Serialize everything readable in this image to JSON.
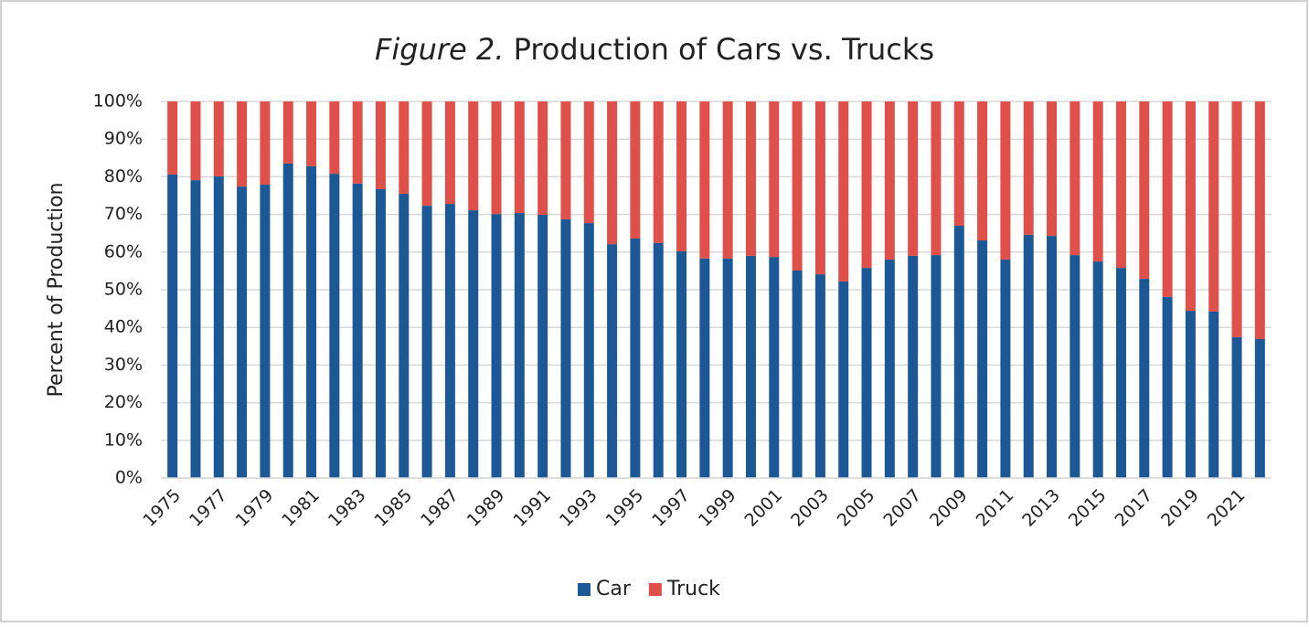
{
  "chart_data": {
    "type": "stacked_bar",
    "figure_label": "Figure 2.",
    "title": "Production of Cars vs. Trucks",
    "y_label": "Percent of Production",
    "categories": [
      "1975",
      null,
      "1977",
      null,
      "1979",
      null,
      "1981",
      null,
      "1983",
      null,
      "1985",
      null,
      "1987",
      null,
      "1989",
      null,
      "1991",
      null,
      "1993",
      null,
      "1995",
      null,
      "1997",
      null,
      "1999",
      null,
      "2001",
      null,
      "2003",
      null,
      "2005",
      null,
      "2007",
      null,
      "2009",
      null,
      "2011",
      null,
      "2013",
      null,
      "2015",
      null,
      "2017",
      null,
      "2019",
      null,
      "2021",
      null
    ],
    "series": [
      {
        "name": "Car",
        "color": "#1c5896",
        "values": [
          80.6,
          79.1,
          80.1,
          77.4,
          77.9,
          83.5,
          82.8,
          80.8,
          78.2,
          76.7,
          75.5,
          72.3,
          72.8,
          71.1,
          70.1,
          70.4,
          69.9,
          68.7,
          67.7,
          62.1,
          63.6,
          62.4,
          60.2,
          58.3,
          58.3,
          59.0,
          58.7,
          55.1,
          54.1,
          52.2,
          55.8,
          58.0,
          59.0,
          59.2,
          67.0,
          63.1,
          58.0,
          64.6,
          64.3,
          59.2,
          57.5,
          55.8,
          52.9,
          48.1,
          44.4,
          44.2,
          37.4,
          36.9
        ]
      },
      {
        "name": "Truck",
        "color": "#e0504a",
        "values": [
          19.4,
          20.9,
          19.9,
          22.6,
          22.1,
          16.5,
          17.2,
          19.2,
          21.8,
          23.3,
          24.5,
          27.7,
          27.2,
          28.9,
          29.9,
          29.6,
          30.1,
          31.3,
          32.3,
          37.9,
          36.4,
          37.6,
          39.8,
          41.7,
          41.7,
          41.0,
          41.3,
          44.9,
          45.9,
          47.8,
          44.2,
          42.0,
          41.0,
          40.8,
          33.0,
          36.9,
          42.0,
          35.4,
          35.7,
          40.8,
          42.5,
          44.2,
          47.1,
          51.9,
          55.6,
          55.8,
          62.6,
          63.1
        ]
      }
    ],
    "ylim": [
      0,
      100
    ],
    "yticks": [
      {
        "value": 0,
        "label": "0%"
      },
      {
        "value": 10,
        "label": "10%"
      },
      {
        "value": 20,
        "label": "20%"
      },
      {
        "value": 30,
        "label": "30%"
      },
      {
        "value": 40,
        "label": "40%"
      },
      {
        "value": 50,
        "label": "50%"
      },
      {
        "value": 60,
        "label": "60%"
      },
      {
        "value": 70,
        "label": "70%"
      },
      {
        "value": 80,
        "label": "80%"
      },
      {
        "value": 90,
        "label": "90%"
      },
      {
        "value": 100,
        "label": "100%"
      }
    ],
    "grid": true,
    "legend": "bottom"
  }
}
